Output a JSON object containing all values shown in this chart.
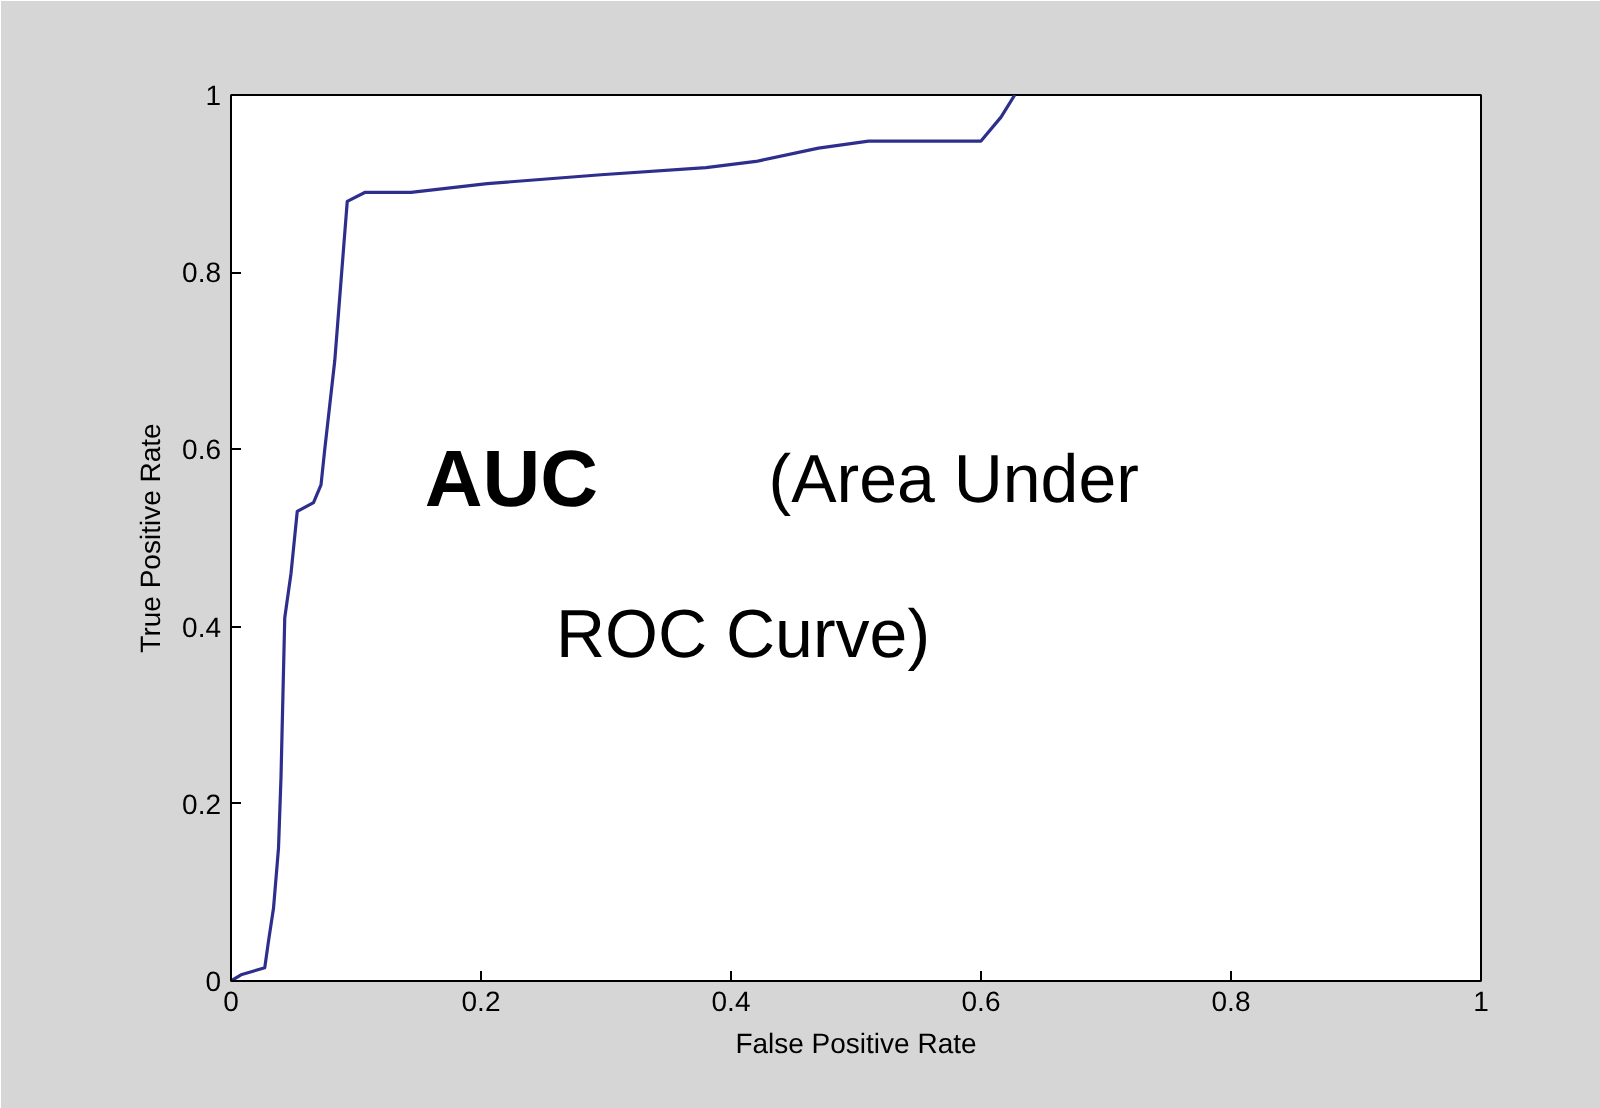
{
  "chart_data": {
    "type": "line",
    "xlabel": "False Positive Rate",
    "ylabel": "True Positive Rate",
    "x": [
      0,
      0.008,
      0.027,
      0.03,
      0.034,
      0.038,
      0.04,
      0.043,
      0.048,
      0.053,
      0.066,
      0.072,
      0.075,
      0.083,
      0.088,
      0.093,
      0.107,
      0.144,
      0.205,
      0.296,
      0.38,
      0.42,
      0.47,
      0.51,
      0.6,
      0.616,
      0.627
    ],
    "series": [
      {
        "color": "#2e2e8c",
        "values": [
          0,
          0.007,
          0.015,
          0.045,
          0.082,
          0.15,
          0.23,
          0.41,
          0.46,
          0.53,
          0.54,
          0.56,
          0.6,
          0.7,
          0.79,
          0.88,
          0.89,
          0.89,
          0.9,
          0.91,
          0.918,
          0.925,
          0.94,
          0.948,
          0.948,
          0.975,
          1.0
        ]
      }
    ],
    "xlim": [
      0,
      1
    ],
    "ylim": [
      0,
      1
    ],
    "xticks": [
      0,
      0.2,
      0.4,
      0.6,
      0.8,
      1
    ],
    "yticks": [
      0,
      0.2,
      0.4,
      0.6,
      0.8,
      1
    ],
    "grid": false,
    "marker": "none",
    "line_style": "solid",
    "annotations": [
      "AUC",
      "(Area Under",
      "ROC Curve)"
    ]
  }
}
